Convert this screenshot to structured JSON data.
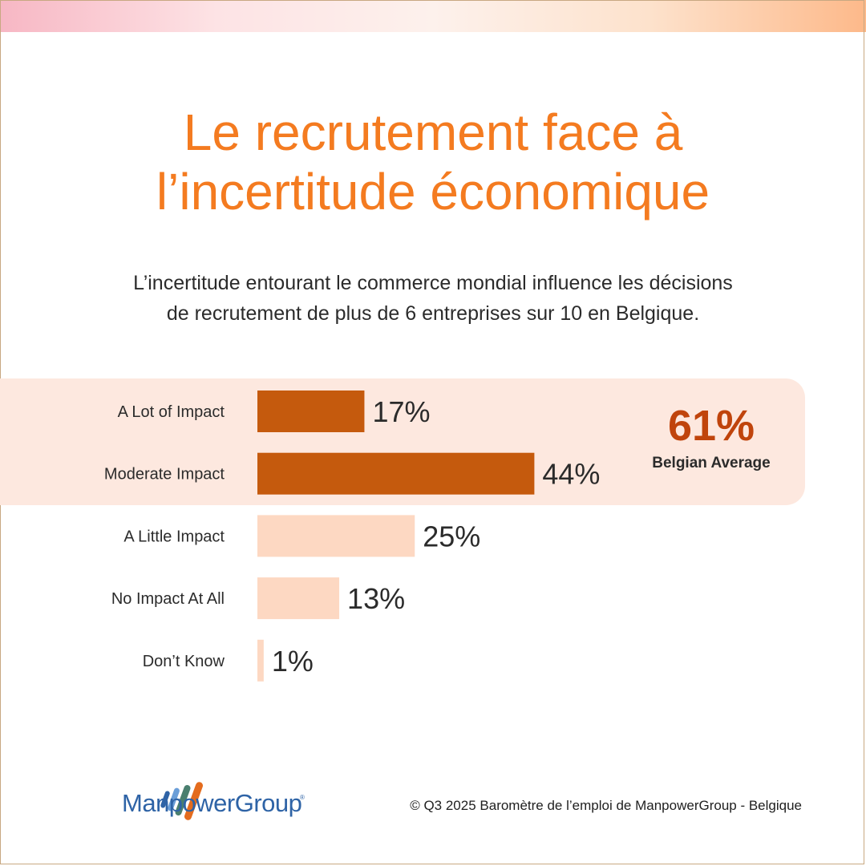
{
  "title_line1": "Le recrutement face à",
  "title_line2": "l’incertitude économique",
  "subtitle_line1": "L’incertitude entourant le commerce mondial influence les décisions",
  "subtitle_line2": "de recrutement de plus de 6 entreprises sur 10 en Belgique.",
  "highlight": {
    "value": "61%",
    "label": "Belgian Average"
  },
  "colors": {
    "accent": "#f47b20",
    "bar_dark": "#c55a0d",
    "bar_light": "#fdd8c2",
    "highlight_bg": "#fde8df",
    "avg_value": "#c0440c"
  },
  "chart_data": {
    "type": "bar",
    "orientation": "horizontal",
    "categories": [
      "A Lot of Impact",
      "Moderate Impact",
      "A Little Impact",
      "No Impact At All",
      "Don’t Know"
    ],
    "values": [
      17,
      44,
      25,
      13,
      1
    ],
    "value_labels": [
      "17%",
      "44%",
      "25%",
      "13%",
      "1%"
    ],
    "highlighted": [
      true,
      true,
      false,
      false,
      false
    ],
    "xlim": [
      0,
      100
    ],
    "grid": false
  },
  "footer": {
    "logo_text": "ManpowerGroup",
    "logo_reg": "®",
    "copyright": "© Q3 2025 Baromètre de l’emploi de ManpowerGroup - Belgique"
  }
}
